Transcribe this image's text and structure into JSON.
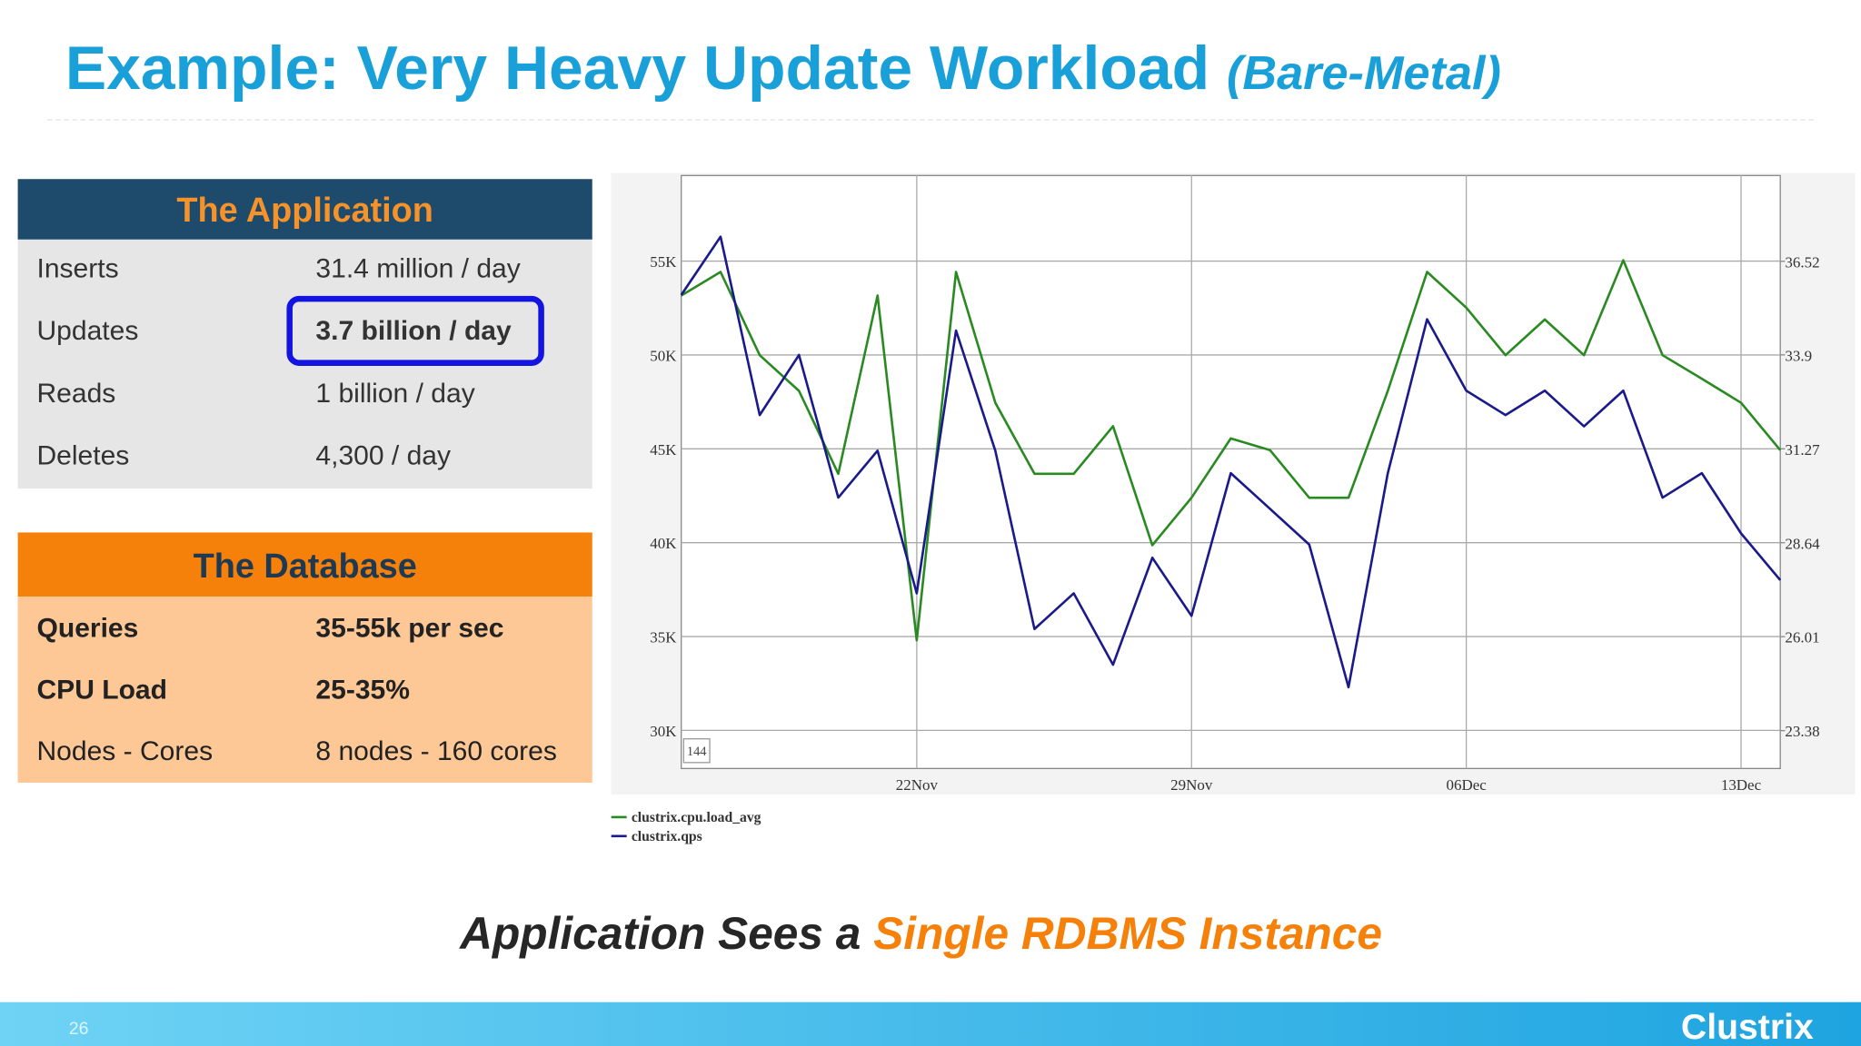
{
  "title": "Example: Very Heavy Update Workload",
  "title_suffix": "(Bare-Metal)",
  "application": {
    "header": "The Application",
    "rows": [
      [
        "Inserts",
        "31.4 million / day"
      ],
      [
        "Updates",
        "3.7 billion / day"
      ],
      [
        "Reads",
        "1 billion / day"
      ],
      [
        "Deletes",
        "4,300 / day"
      ]
    ]
  },
  "database": {
    "header": "The Database",
    "rows": [
      [
        "Queries",
        "35-55k per sec"
      ],
      [
        "CPU Load",
        "25-35%"
      ],
      [
        "Nodes - Cores",
        "8 nodes - 160 cores"
      ]
    ]
  },
  "tagline": {
    "lead": "Application Sees a",
    "highlight": "Single RDBMS Instance"
  },
  "footer": {
    "page": "26",
    "brand": "Clustrix"
  },
  "chart_data": {
    "type": "line",
    "grid": true,
    "annotation": "144",
    "x": [
      "16Nov",
      "17Nov",
      "18Nov",
      "19Nov",
      "20Nov",
      "21Nov",
      "22Nov",
      "23Nov",
      "24Nov",
      "25Nov",
      "26Nov",
      "27Nov",
      "28Nov",
      "29Nov",
      "30Nov",
      "01Dec",
      "02Dec",
      "03Dec",
      "04Dec",
      "05Dec",
      "06Dec",
      "07Dec",
      "08Dec",
      "09Dec",
      "10Dec",
      "11Dec",
      "12Dec",
      "13Dec",
      "14Dec"
    ],
    "xticks": [
      "22Nov",
      "29Nov",
      "06Dec",
      "13Dec"
    ],
    "ylim": [
      27970,
      59560
    ],
    "yticks": [
      {
        "value": 30000,
        "label": "30K"
      },
      {
        "value": 35000,
        "label": "35K"
      },
      {
        "value": 40000,
        "label": "40K"
      },
      {
        "value": 45000,
        "label": "45K"
      },
      {
        "value": 50000,
        "label": "50K"
      },
      {
        "value": 55000,
        "label": "55K"
      }
    ],
    "y2lim": [
      22.32,
      38.92
    ],
    "y2ticks": [
      23.38,
      26.01,
      28.64,
      31.27,
      33.9,
      36.52
    ],
    "series": [
      {
        "name": "clustrix.cpu.load_avg",
        "color": "#2a8a22",
        "axis": "y2",
        "values": [
          35.56,
          36.22,
          33.89,
          32.89,
          30.57,
          35.56,
          25.91,
          36.22,
          32.56,
          30.57,
          30.57,
          31.9,
          28.57,
          29.9,
          31.56,
          31.23,
          29.9,
          29.9,
          32.89,
          36.22,
          35.22,
          33.89,
          34.89,
          33.89,
          36.55,
          33.89,
          33.23,
          32.56,
          31.23
        ]
      },
      {
        "name": "clustrix.qps",
        "color": "#1a1a8a",
        "values": [
          53200,
          56300,
          46800,
          50000,
          42400,
          44900,
          37300,
          51300,
          44900,
          35400,
          37300,
          33500,
          39200,
          36100,
          43700,
          41800,
          39900,
          32300,
          43700,
          51900,
          48100,
          46800,
          48100,
          46200,
          48100,
          42400,
          43700,
          40500,
          38000
        ]
      }
    ]
  }
}
